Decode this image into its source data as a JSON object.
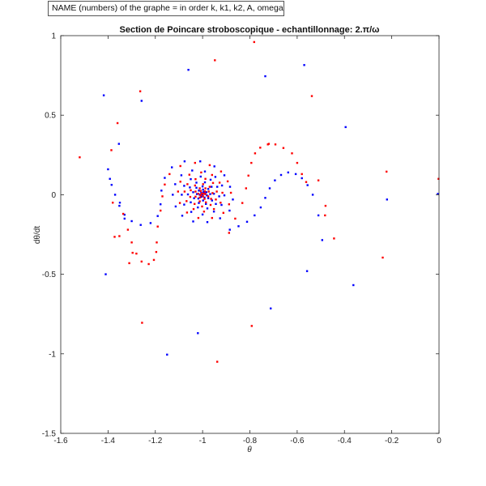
{
  "annotation_box": "NAME (numbers) of the graphe = in order k, k1, k2, A, omega",
  "colors": {
    "series1": "#0000ff",
    "series2": "#ff0000",
    "axis": "#262626"
  },
  "chart_data": {
    "type": "scatter",
    "title": "Section de Poincare stroboscopique  - echantillonnage: 2.π/ω",
    "xlabel": "θ",
    "ylabel": "dθ/dt",
    "xlim": [
      -1.6,
      0
    ],
    "ylim": [
      -1.5,
      1
    ],
    "xticks": [
      "-1.6",
      "-1.4",
      "-1.2",
      "-1",
      "-0.8",
      "-0.6",
      "-0.4",
      "-0.2",
      "0"
    ],
    "yticks": [
      "-1.5",
      "-1",
      "-0.5",
      "0",
      "0.5",
      "1"
    ],
    "grid": false,
    "series": [
      {
        "color": "#0000ff",
        "points": [
          [
            -1.0,
            0.0
          ],
          [
            -0.992,
            0.01
          ],
          [
            -0.996,
            0.018
          ],
          [
            -1.006,
            0.012
          ],
          [
            -1.012,
            0.0
          ],
          [
            -1.006,
            -0.014
          ],
          [
            -0.992,
            -0.018
          ],
          [
            -0.982,
            -0.004
          ],
          [
            -0.984,
            0.016
          ],
          [
            -0.998,
            0.032
          ],
          [
            -1.016,
            0.026
          ],
          [
            -1.024,
            0.004
          ],
          [
            -1.018,
            -0.024
          ],
          [
            -0.998,
            -0.036
          ],
          [
            -0.976,
            -0.022
          ],
          [
            -0.968,
            0.004
          ],
          [
            -0.976,
            0.036
          ],
          [
            -1.0,
            0.052
          ],
          [
            -1.026,
            0.044
          ],
          [
            -1.04,
            0.016
          ],
          [
            -1.036,
            -0.022
          ],
          [
            -1.016,
            -0.052
          ],
          [
            -0.986,
            -0.058
          ],
          [
            -0.96,
            -0.036
          ],
          [
            -0.952,
            0.006
          ],
          [
            -0.962,
            0.05
          ],
          [
            -0.99,
            0.078
          ],
          [
            -1.026,
            0.076
          ],
          [
            -1.054,
            0.046
          ],
          [
            -1.062,
            0.002
          ],
          [
            -1.05,
            -0.048
          ],
          [
            -1.02,
            -0.08
          ],
          [
            -0.98,
            -0.086
          ],
          [
            -0.944,
            -0.058
          ],
          [
            -0.93,
            -0.01
          ],
          [
            -0.938,
            0.05
          ],
          [
            -0.966,
            0.094
          ],
          [
            -1.008,
            0.114
          ],
          [
            -1.05,
            0.098
          ],
          [
            -1.078,
            0.056
          ],
          [
            -1.088,
            0.0
          ],
          [
            -1.078,
            -0.062
          ],
          [
            -1.048,
            -0.108
          ],
          [
            -1.0,
            -0.124
          ],
          [
            -0.952,
            -0.106
          ],
          [
            -0.92,
            -0.064
          ],
          [
            -0.908,
            -0.004
          ],
          [
            -0.918,
            0.058
          ],
          [
            -0.946,
            0.112
          ],
          [
            -0.99,
            0.146
          ],
          [
            -1.044,
            0.152
          ],
          [
            -1.09,
            0.122
          ],
          [
            -1.116,
            0.066
          ],
          [
            -1.126,
            0.0
          ],
          [
            -1.114,
            -0.074
          ],
          [
            -1.086,
            -0.132
          ],
          [
            -1.04,
            -0.168
          ],
          [
            -0.98,
            -0.172
          ],
          [
            -0.926,
            -0.148
          ],
          [
            -0.886,
            -0.1
          ],
          [
            -0.872,
            -0.03
          ],
          [
            -0.884,
            0.05
          ],
          [
            -0.908,
            0.122
          ],
          [
            -0.95,
            0.178
          ],
          [
            -1.01,
            0.21
          ],
          [
            -1.076,
            0.21
          ],
          [
            -1.13,
            0.172
          ],
          [
            -1.16,
            0.106
          ],
          [
            -1.174,
            0.026
          ],
          [
            -1.178,
            -0.06
          ],
          [
            -1.19,
            -0.134
          ],
          [
            -1.22,
            -0.178
          ],
          [
            -1.262,
            -0.19
          ],
          [
            -1.3,
            -0.166
          ],
          [
            -1.33,
            -0.126
          ],
          [
            -1.352,
            -0.07
          ],
          [
            -1.37,
            0.0
          ],
          [
            -1.385,
            0.062
          ],
          [
            -1.392,
            0.1
          ],
          [
            -1.4,
            0.16
          ],
          [
            -1.354,
            0.32
          ],
          [
            -1.258,
            0.59
          ],
          [
            -1.418,
            0.625
          ],
          [
            -1.06,
            0.785
          ],
          [
            -0.735,
            0.745
          ],
          [
            -0.57,
            0.815
          ],
          [
            -0.395,
            0.425
          ],
          [
            -0.885,
            -0.22
          ],
          [
            -0.848,
            -0.198
          ],
          [
            -0.812,
            -0.17
          ],
          [
            -0.78,
            -0.13
          ],
          [
            -0.754,
            -0.08
          ],
          [
            -0.735,
            -0.02
          ],
          [
            -0.716,
            0.04
          ],
          [
            -0.694,
            0.09
          ],
          [
            -0.668,
            0.124
          ],
          [
            -0.638,
            0.14
          ],
          [
            -0.606,
            0.13
          ],
          [
            -0.58,
            0.104
          ],
          [
            -0.556,
            0.06
          ],
          [
            -0.534,
            0.0
          ],
          [
            -0.51,
            -0.13
          ],
          [
            -0.494,
            -0.285
          ],
          [
            -0.558,
            -0.48
          ],
          [
            -0.362,
            -0.568
          ],
          [
            -0.22,
            -0.03
          ],
          [
            -0.005,
            0.005
          ],
          [
            -0.712,
            -0.715
          ],
          [
            -1.41,
            -0.5
          ],
          [
            -1.15,
            -1.005
          ],
          [
            -1.02,
            -0.87
          ],
          [
            -1.35,
            -0.05
          ],
          [
            -1.33,
            -0.15
          ]
        ]
      },
      {
        "color": "#ff0000",
        "points": [
          [
            -0.996,
            0.006
          ],
          [
            -1.004,
            0.008
          ],
          [
            -1.008,
            -0.004
          ],
          [
            -0.998,
            -0.01
          ],
          [
            -0.988,
            0.004
          ],
          [
            -0.99,
            0.022
          ],
          [
            -1.008,
            0.024
          ],
          [
            -1.018,
            0.006
          ],
          [
            -1.012,
            -0.018
          ],
          [
            -0.992,
            -0.026
          ],
          [
            -0.976,
            -0.01
          ],
          [
            -0.974,
            0.02
          ],
          [
            -0.988,
            0.04
          ],
          [
            -1.012,
            0.04
          ],
          [
            -1.03,
            0.02
          ],
          [
            -1.03,
            -0.012
          ],
          [
            -1.012,
            -0.042
          ],
          [
            -0.986,
            -0.048
          ],
          [
            -0.964,
            -0.026
          ],
          [
            -0.958,
            0.01
          ],
          [
            -0.97,
            0.05
          ],
          [
            -0.998,
            0.066
          ],
          [
            -1.032,
            0.058
          ],
          [
            -1.05,
            0.028
          ],
          [
            -1.052,
            -0.014
          ],
          [
            -1.034,
            -0.058
          ],
          [
            -1.002,
            -0.074
          ],
          [
            -0.966,
            -0.064
          ],
          [
            -0.944,
            -0.03
          ],
          [
            -0.94,
            0.02
          ],
          [
            -0.956,
            0.074
          ],
          [
            -0.988,
            0.1
          ],
          [
            -1.03,
            0.098
          ],
          [
            -1.064,
            0.066
          ],
          [
            -1.076,
            0.02
          ],
          [
            -1.068,
            -0.04
          ],
          [
            -1.038,
            -0.09
          ],
          [
            -0.994,
            -0.106
          ],
          [
            -0.952,
            -0.09
          ],
          [
            -0.924,
            -0.05
          ],
          [
            -0.916,
            0.012
          ],
          [
            -0.928,
            0.076
          ],
          [
            -0.96,
            0.124
          ],
          [
            -1.006,
            0.14
          ],
          [
            -1.056,
            0.126
          ],
          [
            -1.094,
            0.082
          ],
          [
            -1.104,
            0.02
          ],
          [
            -1.096,
            -0.052
          ],
          [
            -1.066,
            -0.112
          ],
          [
            -1.018,
            -0.146
          ],
          [
            -0.96,
            -0.146
          ],
          [
            -0.912,
            -0.114
          ],
          [
            -0.888,
            -0.06
          ],
          [
            -0.88,
            0.012
          ],
          [
            -0.894,
            0.084
          ],
          [
            -0.922,
            0.146
          ],
          [
            -0.97,
            0.186
          ],
          [
            -1.032,
            0.2
          ],
          [
            -1.094,
            0.18
          ],
          [
            -1.14,
            0.13
          ],
          [
            -1.16,
            0.064
          ],
          [
            -1.17,
            -0.01
          ],
          [
            -1.178,
            -0.1
          ],
          [
            -1.19,
            -0.2
          ],
          [
            -1.194,
            -0.3
          ],
          [
            -1.196,
            -0.36
          ],
          [
            -1.206,
            -0.41
          ],
          [
            -1.228,
            -0.436
          ],
          [
            -1.258,
            -0.42
          ],
          [
            -1.28,
            -0.37
          ],
          [
            -1.3,
            -0.3
          ],
          [
            -1.316,
            -0.22
          ],
          [
            -1.336,
            -0.12
          ],
          [
            -1.352,
            -0.26
          ],
          [
            -1.38,
            -0.05
          ],
          [
            -1.386,
            0.28
          ],
          [
            -1.36,
            0.45
          ],
          [
            -1.52,
            0.235
          ],
          [
            -1.264,
            0.65
          ],
          [
            -0.948,
            0.845
          ],
          [
            -0.782,
            0.96
          ],
          [
            -0.538,
            0.62
          ],
          [
            -0.888,
            -0.24
          ],
          [
            -0.862,
            -0.15
          ],
          [
            -0.832,
            -0.052
          ],
          [
            -0.816,
            0.04
          ],
          [
            -0.806,
            0.12
          ],
          [
            -0.794,
            0.2
          ],
          [
            -0.778,
            0.26
          ],
          [
            -0.756,
            0.296
          ],
          [
            -0.724,
            0.316
          ],
          [
            -0.692,
            0.316
          ],
          [
            -0.658,
            0.294
          ],
          [
            -0.622,
            0.26
          ],
          [
            -0.6,
            0.2
          ],
          [
            -0.58,
            0.13
          ],
          [
            -0.562,
            0.08
          ],
          [
            -0.482,
            -0.13
          ],
          [
            -0.444,
            -0.275
          ],
          [
            -0.48,
            -0.07
          ],
          [
            -0.238,
            -0.395
          ],
          [
            -0.222,
            0.145
          ],
          [
            -0.002,
            0.1
          ],
          [
            -0.792,
            -0.825
          ],
          [
            -0.938,
            -1.05
          ],
          [
            -1.256,
            -0.805
          ],
          [
            -1.372,
            -0.265
          ],
          [
            -1.296,
            -0.365
          ],
          [
            -1.31,
            -0.43
          ],
          [
            -0.51,
            0.09
          ],
          [
            -0.72,
            0.32
          ]
        ]
      }
    ]
  }
}
